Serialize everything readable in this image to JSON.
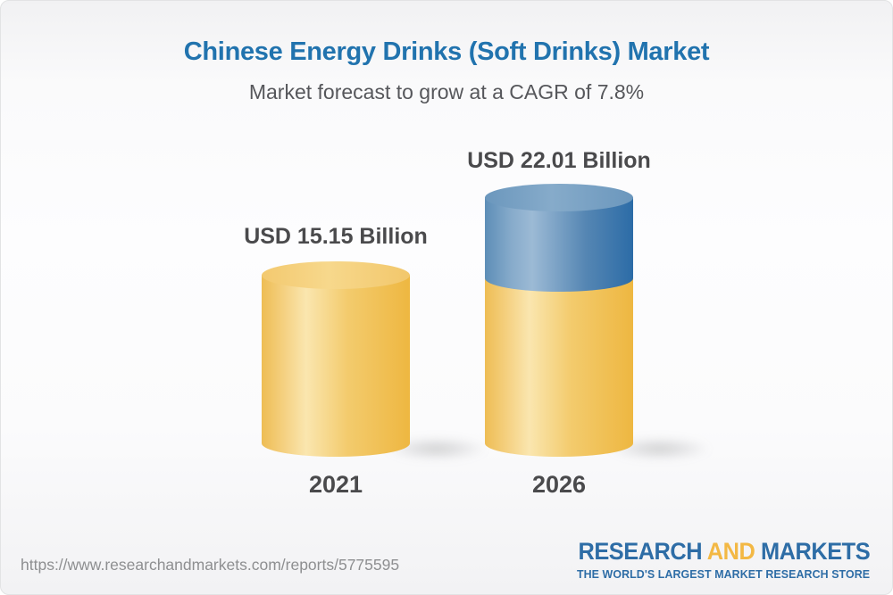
{
  "header": {
    "title": "Chinese Energy Drinks (Soft Drinks) Market",
    "subtitle": "Market forecast to grow at a CAGR of 7.8%"
  },
  "chart_data": {
    "type": "bar",
    "bar_style": "3d-cylinder",
    "categories": [
      "2021",
      "2026"
    ],
    "values": [
      15.15,
      22.01
    ],
    "unit": "USD Billion",
    "value_labels": [
      "USD 15.15 Billion",
      "USD 22.01 Billion"
    ],
    "title": "Chinese Energy Drinks (Soft Drinks) Market",
    "subtitle": "Market forecast to grow at a CAGR of 7.8%",
    "cagr_percent": 7.8,
    "series": [
      {
        "name": "base market (2021 level)",
        "color": "#F2C463"
      },
      {
        "name": "forecast growth (2026 increment)",
        "color": "#4F85B2"
      }
    ],
    "legend": false,
    "grid": false,
    "axes_visible": false
  },
  "footer": {
    "url": "https://www.researchandmarkets.com/reports/5775595",
    "logo": {
      "part1": "RESEARCH",
      "part2": "AND",
      "part3": "MARKETS",
      "tagline": "THE WORLD'S LARGEST MARKET RESEARCH STORE",
      "blue": "#2E6DA6",
      "yellow": "#F3B844"
    }
  }
}
